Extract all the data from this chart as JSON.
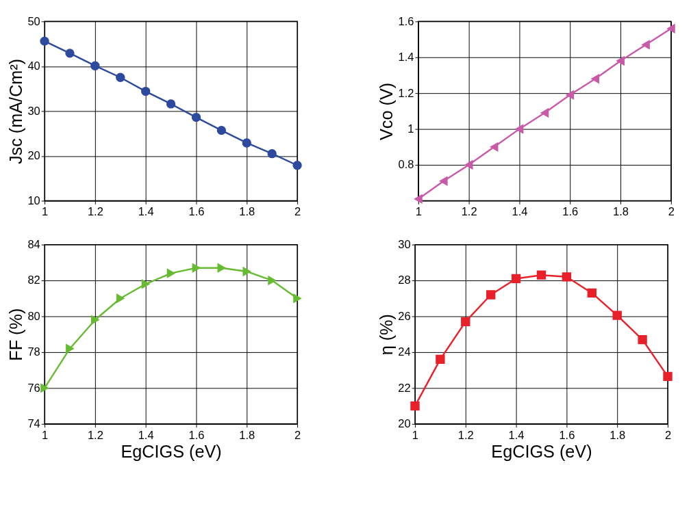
{
  "chart_data": [
    {
      "type": "line",
      "ylabel": "Jsc (mA/Cm²)",
      "x": [
        1.0,
        1.1,
        1.2,
        1.3,
        1.4,
        1.5,
        1.6,
        1.7,
        1.8,
        1.9,
        2.0
      ],
      "xlim": [
        1,
        2
      ],
      "xticks": [
        1,
        1.2,
        1.4,
        1.6,
        1.8,
        2
      ],
      "ylim": [
        10,
        50
      ],
      "yticks": [
        10,
        20,
        30,
        40,
        50
      ],
      "grid": true,
      "marker": "circle",
      "series": [
        {
          "color": "#2e4a9e",
          "values": [
            45.6,
            42.9,
            40.1,
            37.5,
            34.4,
            31.6,
            28.6,
            25.7,
            22.9,
            20.5,
            17.9
          ]
        }
      ]
    },
    {
      "type": "line",
      "ylabel": "Vco (V)",
      "x": [
        1.0,
        1.1,
        1.2,
        1.3,
        1.4,
        1.5,
        1.6,
        1.7,
        1.8,
        1.9,
        2.0
      ],
      "xlim": [
        1,
        2
      ],
      "xticks": [
        1,
        1.2,
        1.4,
        1.6,
        1.8,
        2
      ],
      "ylim": [
        0.6,
        1.6
      ],
      "yticks": [
        0.8,
        1,
        1.2,
        1.4,
        1.6
      ],
      "grid": true,
      "marker": "triangle-left",
      "series": [
        {
          "color": "#c85aa8",
          "values": [
            0.61,
            0.71,
            0.8,
            0.9,
            1.0,
            1.09,
            1.19,
            1.28,
            1.38,
            1.47,
            1.56
          ]
        }
      ]
    },
    {
      "type": "line",
      "xlabel": "EgCIGS (eV)",
      "ylabel": "FF (%)",
      "x": [
        1.0,
        1.1,
        1.2,
        1.3,
        1.4,
        1.5,
        1.6,
        1.7,
        1.8,
        1.9,
        2.0
      ],
      "xlim": [
        1,
        2
      ],
      "xticks": [
        1,
        1.2,
        1.4,
        1.6,
        1.8,
        2
      ],
      "ylim": [
        74,
        84
      ],
      "yticks": [
        74,
        76,
        78,
        80,
        82,
        84
      ],
      "grid": true,
      "marker": "triangle-right",
      "series": [
        {
          "color": "#66bb33",
          "values": [
            76.0,
            78.2,
            79.8,
            81.0,
            81.8,
            82.4,
            82.7,
            82.7,
            82.5,
            82.0,
            81.0
          ]
        }
      ]
    },
    {
      "type": "line",
      "xlabel": "EgCIGS (eV)",
      "ylabel": "η (%)",
      "x": [
        1.0,
        1.1,
        1.2,
        1.3,
        1.4,
        1.5,
        1.6,
        1.7,
        1.8,
        1.9,
        2.0
      ],
      "xlim": [
        1,
        2
      ],
      "xticks": [
        1,
        1.2,
        1.4,
        1.6,
        1.8,
        2
      ],
      "ylim": [
        20,
        30
      ],
      "yticks": [
        20,
        22,
        24,
        26,
        28,
        30
      ],
      "grid": true,
      "marker": "square",
      "series": [
        {
          "color": "#e8202a",
          "values": [
            21.0,
            23.6,
            25.7,
            27.2,
            28.1,
            28.3,
            28.2,
            27.3,
            26.05,
            24.7,
            22.65
          ]
        }
      ]
    }
  ]
}
